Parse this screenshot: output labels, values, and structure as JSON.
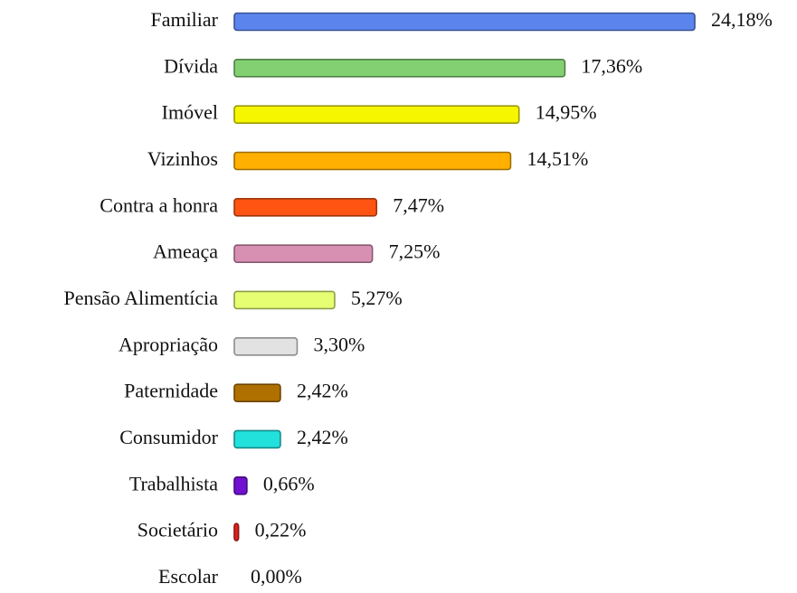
{
  "chart_data": {
    "type": "bar",
    "orientation": "horizontal",
    "categories": [
      "Familiar",
      "Dívida",
      "Imóvel",
      "Vizinhos",
      "Contra a honra",
      "Ameaça",
      "Pensão Alimentícia",
      "Apropriação",
      "Paternidade",
      "Consumidor",
      "Trabalhista",
      "Societário",
      "Escolar"
    ],
    "values": [
      24.18,
      17.36,
      14.95,
      14.51,
      7.47,
      7.25,
      5.27,
      3.3,
      2.42,
      2.42,
      0.66,
      0.22,
      0.0
    ],
    "value_labels": [
      "24,18%",
      "17,36%",
      "14,95%",
      "14,51%",
      "7,47%",
      "7,25%",
      "5,27%",
      "3,30%",
      "2,42%",
      "2,42%",
      "0,66%",
      "0,22%",
      "0,00%"
    ],
    "colors": [
      "#5b84ec",
      "#82d072",
      "#f6f600",
      "#ffb000",
      "#ff5412",
      "#d890b2",
      "#e6ff72",
      "#e2e2e2",
      "#b07000",
      "#22e0dc",
      "#7010d0",
      "#e02020",
      "#999999"
    ]
  }
}
